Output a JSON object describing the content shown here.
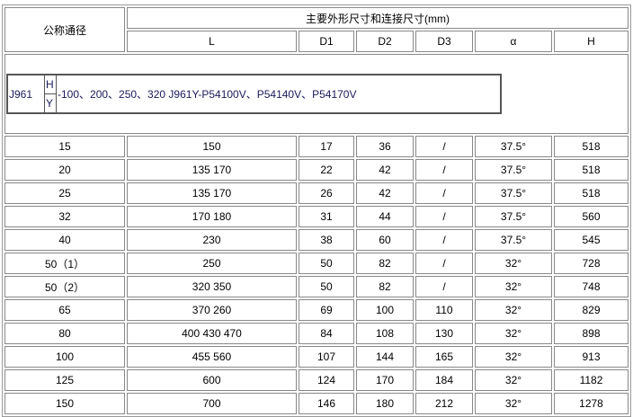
{
  "header": {
    "nominal": "公称通径",
    "group": "主要外形尺寸和连接尺寸(mm)",
    "columns": [
      "L",
      "D1",
      "D2",
      "D3",
      "α",
      "H"
    ]
  },
  "model": {
    "code": "J961",
    "h": "H",
    "y": "Y",
    "text": "-100、200、250、320 J961Y-P54100V、P54140V、P54170V"
  },
  "rows": [
    [
      "15",
      "150",
      "17",
      "36",
      "/",
      "37.5°",
      "518"
    ],
    [
      "20",
      "135 170",
      "22",
      "42",
      "/",
      "37.5°",
      "518"
    ],
    [
      "25",
      "135 170",
      "26",
      "42",
      "/",
      "37.5°",
      "518"
    ],
    [
      "32",
      "170 180",
      "31",
      "44",
      "/",
      "37.5°",
      "560"
    ],
    [
      "40",
      "230",
      "38",
      "60",
      "/",
      "37.5°",
      "545"
    ],
    [
      "50（1）",
      "250",
      "50",
      "82",
      "/",
      "32°",
      "728"
    ],
    [
      "50（2）",
      "320 350",
      "50",
      "82",
      "/",
      "32°",
      "748"
    ],
    [
      "65",
      "370 260",
      "69",
      "100",
      "110",
      "32°",
      "829"
    ],
    [
      "80",
      "400 430 470",
      "84",
      "108",
      "130",
      "32°",
      "898"
    ],
    [
      "100",
      "455 560",
      "107",
      "144",
      "165",
      "32°",
      "913"
    ],
    [
      "125",
      "600",
      "124",
      "170",
      "184",
      "32°",
      "1182"
    ],
    [
      "150",
      "700",
      "146",
      "180",
      "212",
      "32°",
      "1278"
    ]
  ]
}
